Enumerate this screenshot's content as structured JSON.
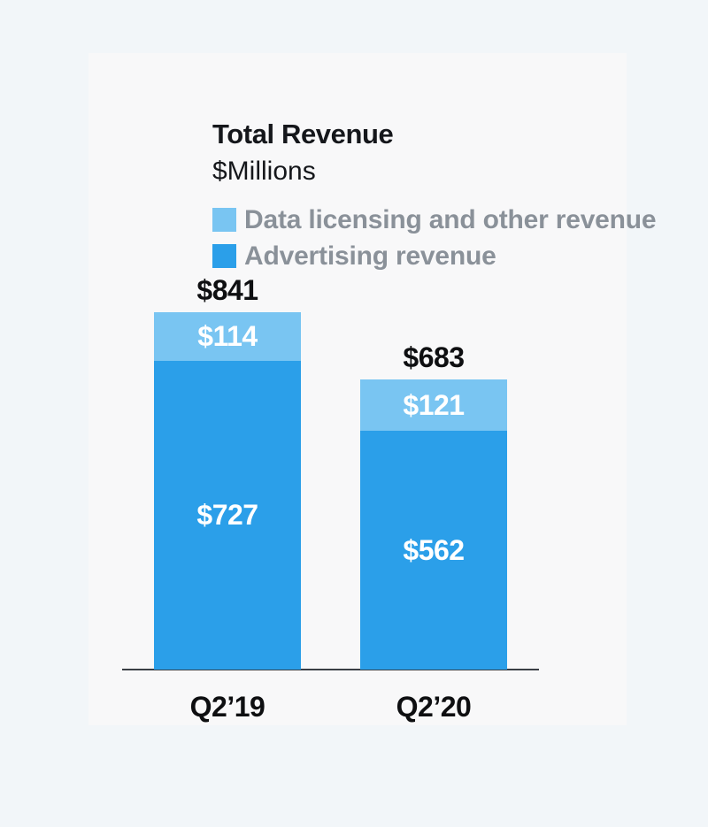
{
  "header": {
    "title": "Total Revenue",
    "subtitle": "$Millions"
  },
  "legend": {
    "items": [
      {
        "label": "Data licensing and other revenue",
        "color": "#79C5F2"
      },
      {
        "label": "Advertising revenue",
        "color": "#2B9FE9"
      }
    ]
  },
  "chart_data": {
    "type": "bar",
    "stacked": true,
    "title": "Total Revenue",
    "ylabel": "$Millions",
    "legend_position": "top-left",
    "grid": false,
    "categories": [
      "Q2’19",
      "Q2’20"
    ],
    "series": [
      {
        "name": "Data licensing and other revenue",
        "color": "#79C5F2",
        "values": [
          114,
          121
        ],
        "labels": [
          "$114",
          "$121"
        ]
      },
      {
        "name": "Advertising revenue",
        "color": "#2B9FE9",
        "values": [
          727,
          562
        ],
        "labels": [
          "$727",
          "$562"
        ]
      }
    ],
    "totals": [
      841,
      683
    ],
    "total_labels": [
      "$841",
      "$683"
    ],
    "colors": {
      "axis_line": "#3A3F45",
      "value_label_dark": "#0E0F11",
      "value_label_light": "#FFFFFF",
      "legend_text": "#8A9199",
      "panel_background": "#F8F8F9",
      "page_background": "#F2F6F9"
    }
  }
}
